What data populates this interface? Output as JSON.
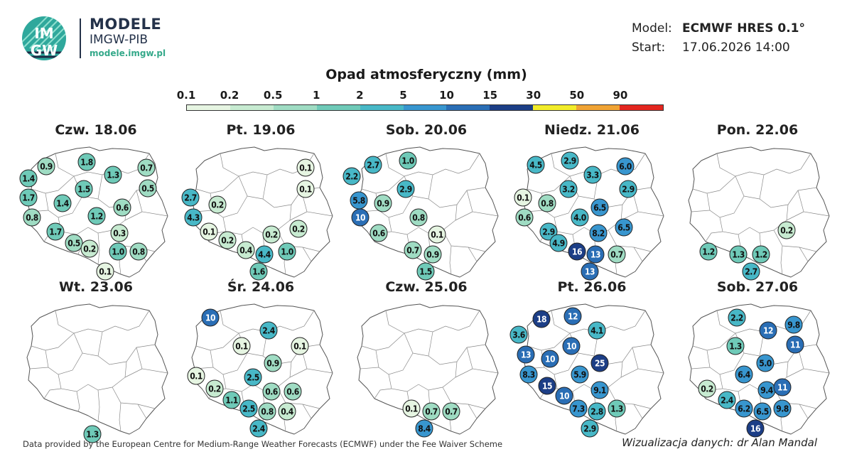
{
  "header": {
    "logo_text_top": "IM",
    "logo_text_bottom": "GW",
    "brand_title": "MODELE",
    "brand_subtitle": "IMGW-PIB",
    "brand_url": "modele.imgw.pl",
    "model_label": "Model:",
    "model_value": "ECMWF HRES 0.1°",
    "start_label": "Start:",
    "start_value": "17.06.2026 14:00"
  },
  "legend": {
    "title": "Opad atmosferyczny (mm)",
    "ticks": [
      "0.1",
      "0.2",
      "0.5",
      "1",
      "2",
      "5",
      "10",
      "15",
      "30",
      "50",
      "90"
    ],
    "colors": [
      "#e6f5e2",
      "#c7ebd1",
      "#9fdcc3",
      "#6fcab8",
      "#48b8c7",
      "#3896cf",
      "#2a6eb5",
      "#1c3e86",
      "#f2ec2a",
      "#f0a334",
      "#e3261f"
    ]
  },
  "panels": [
    {
      "date": "Czw. 18.06",
      "points": [
        {
          "v": "0.9"
        },
        {
          "v": "1.8"
        },
        {
          "v": "0.7"
        },
        {
          "v": "1.4"
        },
        {
          "v": "1.3"
        },
        {
          "v": "0.5"
        },
        {
          "v": "1.7"
        },
        {
          "v": "1.5"
        },
        {
          "v": "1.4"
        },
        {
          "v": "0.6"
        },
        {
          "v": "0.8"
        },
        {
          "v": "1.2"
        },
        {
          "v": "1.7"
        },
        {
          "v": "0.3"
        },
        {
          "v": "0.5"
        },
        {
          "v": "0.2"
        },
        {
          "v": "1.0"
        },
        {
          "v": "0.8"
        },
        {
          "v": "0.1"
        }
      ]
    },
    {
      "date": "Pt. 19.06",
      "points": [
        {
          "v": "0.1"
        },
        {
          "v": "0.1"
        },
        {
          "v": "2.7"
        },
        {
          "v": "0.2"
        },
        {
          "v": "4.3"
        },
        {
          "v": "0.1"
        },
        {
          "v": "0.2"
        },
        {
          "v": "0.2"
        },
        {
          "v": "0.2"
        },
        {
          "v": "0.4"
        },
        {
          "v": "4.4"
        },
        {
          "v": "1.0"
        },
        {
          "v": "1.6"
        }
      ]
    },
    {
      "date": "Sob. 20.06",
      "points": [
        {
          "v": "1.0"
        },
        {
          "v": "2.7"
        },
        {
          "v": "2.2"
        },
        {
          "v": "2.9"
        },
        {
          "v": "5.8"
        },
        {
          "v": "0.9"
        },
        {
          "v": "10"
        },
        {
          "v": "0.8"
        },
        {
          "v": "0.6"
        },
        {
          "v": "0.1"
        },
        {
          "v": "0.7"
        },
        {
          "v": "0.9"
        },
        {
          "v": "1.5"
        }
      ]
    },
    {
      "date": "Niedz. 21.06",
      "points": [
        {
          "v": "4.5"
        },
        {
          "v": "2.9"
        },
        {
          "v": "6.0"
        },
        {
          "v": "3.3"
        },
        {
          "v": "3.2"
        },
        {
          "v": "2.9"
        },
        {
          "v": "0.1"
        },
        {
          "v": "0.8"
        },
        {
          "v": "6.5"
        },
        {
          "v": "0.6"
        },
        {
          "v": "4.0"
        },
        {
          "v": "2.9"
        },
        {
          "v": "6.5"
        },
        {
          "v": "8.2"
        },
        {
          "v": "4.9"
        },
        {
          "v": "16"
        },
        {
          "v": "13"
        },
        {
          "v": "0.7"
        },
        {
          "v": "13"
        }
      ]
    },
    {
      "date": "Pon. 22.06",
      "points": [
        {
          "v": "0.2"
        },
        {
          "v": "1.2"
        },
        {
          "v": "1.3"
        },
        {
          "v": "1.2"
        },
        {
          "v": "2.7"
        }
      ]
    },
    {
      "date": "Wt. 23.06",
      "points": [
        {
          "v": "1.3"
        }
      ]
    },
    {
      "date": "Śr. 24.06",
      "points": [
        {
          "v": "10"
        },
        {
          "v": "2.4"
        },
        {
          "v": "0.1"
        },
        {
          "v": "0.1"
        },
        {
          "v": "0.9"
        },
        {
          "v": "0.1"
        },
        {
          "v": "2.5"
        },
        {
          "v": "0.2"
        },
        {
          "v": "0.6"
        },
        {
          "v": "0.6"
        },
        {
          "v": "1.1"
        },
        {
          "v": "2.5"
        },
        {
          "v": "0.8"
        },
        {
          "v": "0.4"
        },
        {
          "v": "2.4"
        }
      ]
    },
    {
      "date": "Czw. 25.06",
      "points": [
        {
          "v": "0.1"
        },
        {
          "v": "0.7"
        },
        {
          "v": "0.7"
        },
        {
          "v": "8.4"
        }
      ]
    },
    {
      "date": "Pt. 26.06",
      "points": [
        {
          "v": "18"
        },
        {
          "v": "12"
        },
        {
          "v": "3.6"
        },
        {
          "v": "4.1"
        },
        {
          "v": "13"
        },
        {
          "v": "10"
        },
        {
          "v": "10"
        },
        {
          "v": "25"
        },
        {
          "v": "8.3"
        },
        {
          "v": "5.9"
        },
        {
          "v": "15"
        },
        {
          "v": "9.1"
        },
        {
          "v": "10"
        },
        {
          "v": "7.3"
        },
        {
          "v": "2.8"
        },
        {
          "v": "1.3"
        },
        {
          "v": "2.9"
        }
      ]
    },
    {
      "date": "Sob. 27.06",
      "points": [
        {
          "v": "2.2"
        },
        {
          "v": "12"
        },
        {
          "v": "9.8"
        },
        {
          "v": "11"
        },
        {
          "v": "1.3"
        },
        {
          "v": "5.0"
        },
        {
          "v": "6.4"
        },
        {
          "v": "0.2"
        },
        {
          "v": "9.4"
        },
        {
          "v": "11"
        },
        {
          "v": "2.4"
        },
        {
          "v": "6.2"
        },
        {
          "v": "6.5"
        },
        {
          "v": "9.8"
        },
        {
          "v": "16"
        }
      ]
    }
  ],
  "footer": {
    "credit": "Data provided by the European Centre for Medium-Range Weather Forecasts (ECMWF) under the Fee Waiver Scheme",
    "author": "Wizualizacja danych: dr Alan Mandal"
  }
}
